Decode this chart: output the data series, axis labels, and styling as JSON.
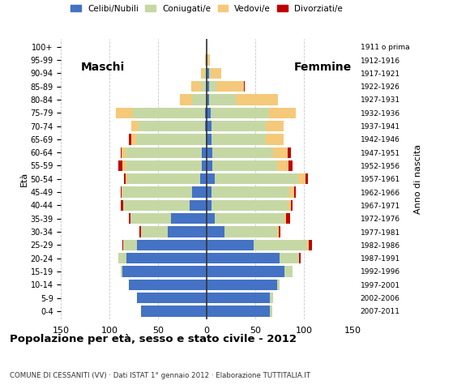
{
  "age_groups": [
    "0-4",
    "5-9",
    "10-14",
    "15-19",
    "20-24",
    "25-29",
    "30-34",
    "35-39",
    "40-44",
    "45-49",
    "50-54",
    "55-59",
    "60-64",
    "65-69",
    "70-74",
    "75-79",
    "80-84",
    "85-89",
    "90-94",
    "95-99",
    "100+"
  ],
  "birth_years": [
    "2007-2011",
    "2002-2006",
    "1997-2001",
    "1992-1996",
    "1987-1991",
    "1982-1986",
    "1977-1981",
    "1972-1976",
    "1967-1971",
    "1962-1966",
    "1957-1961",
    "1952-1956",
    "1947-1951",
    "1942-1946",
    "1937-1941",
    "1932-1936",
    "1927-1931",
    "1922-1926",
    "1917-1921",
    "1912-1916",
    "1911 o prima"
  ],
  "male": {
    "celibe": [
      68,
      72,
      80,
      87,
      83,
      72,
      40,
      37,
      18,
      15,
      7,
      5,
      5,
      1,
      2,
      2,
      0,
      0,
      0,
      0,
      0
    ],
    "coniugato": [
      0,
      0,
      0,
      2,
      8,
      14,
      28,
      42,
      68,
      72,
      75,
      79,
      79,
      72,
      68,
      74,
      15,
      6,
      3,
      1,
      0
    ],
    "vedovo": [
      0,
      0,
      0,
      0,
      0,
      0,
      0,
      0,
      0,
      1,
      2,
      3,
      4,
      5,
      8,
      18,
      13,
      10,
      3,
      1,
      0
    ],
    "divorziato": [
      0,
      0,
      0,
      0,
      0,
      1,
      1,
      1,
      3,
      1,
      1,
      4,
      1,
      2,
      0,
      0,
      0,
      0,
      0,
      0,
      0
    ]
  },
  "female": {
    "nubile": [
      65,
      65,
      72,
      80,
      75,
      48,
      18,
      8,
      5,
      5,
      8,
      6,
      6,
      5,
      5,
      4,
      2,
      2,
      2,
      1,
      0
    ],
    "coniugata": [
      2,
      3,
      3,
      8,
      20,
      55,
      54,
      72,
      78,
      80,
      86,
      66,
      62,
      56,
      56,
      60,
      28,
      8,
      2,
      0,
      0
    ],
    "vedova": [
      0,
      0,
      0,
      0,
      0,
      2,
      2,
      2,
      4,
      5,
      8,
      12,
      15,
      18,
      18,
      28,
      43,
      28,
      11,
      2,
      1
    ],
    "divorziata": [
      0,
      0,
      0,
      0,
      2,
      3,
      2,
      4,
      1,
      2,
      2,
      4,
      4,
      0,
      0,
      0,
      0,
      1,
      0,
      0,
      0
    ]
  },
  "colors": {
    "celibe_nubile": "#4472C4",
    "coniugato_a": "#c5d8a4",
    "vedovo_a": "#f5c97a",
    "divorziato_a": "#c00000"
  },
  "title": "Popolazione per età, sesso e stato civile - 2012",
  "subtitle": "COMUNE DI CESSANITI (VV) · Dati ISTAT 1° gennaio 2012 · Elaborazione TUTTITALIA.IT",
  "xlabel_left": "Maschi",
  "xlabel_right": "Femmine",
  "ylabel_left": "Età",
  "ylabel_right": "Anno di nascita",
  "xlim": 150,
  "xticks": [
    -150,
    -100,
    -50,
    0,
    50,
    100,
    150
  ],
  "legend_labels": [
    "Celibi/Nubili",
    "Coniugati/e",
    "Vedovi/e",
    "Divorziati/e"
  ],
  "background_color": "#ffffff",
  "grid_color": "#bbbbbb"
}
